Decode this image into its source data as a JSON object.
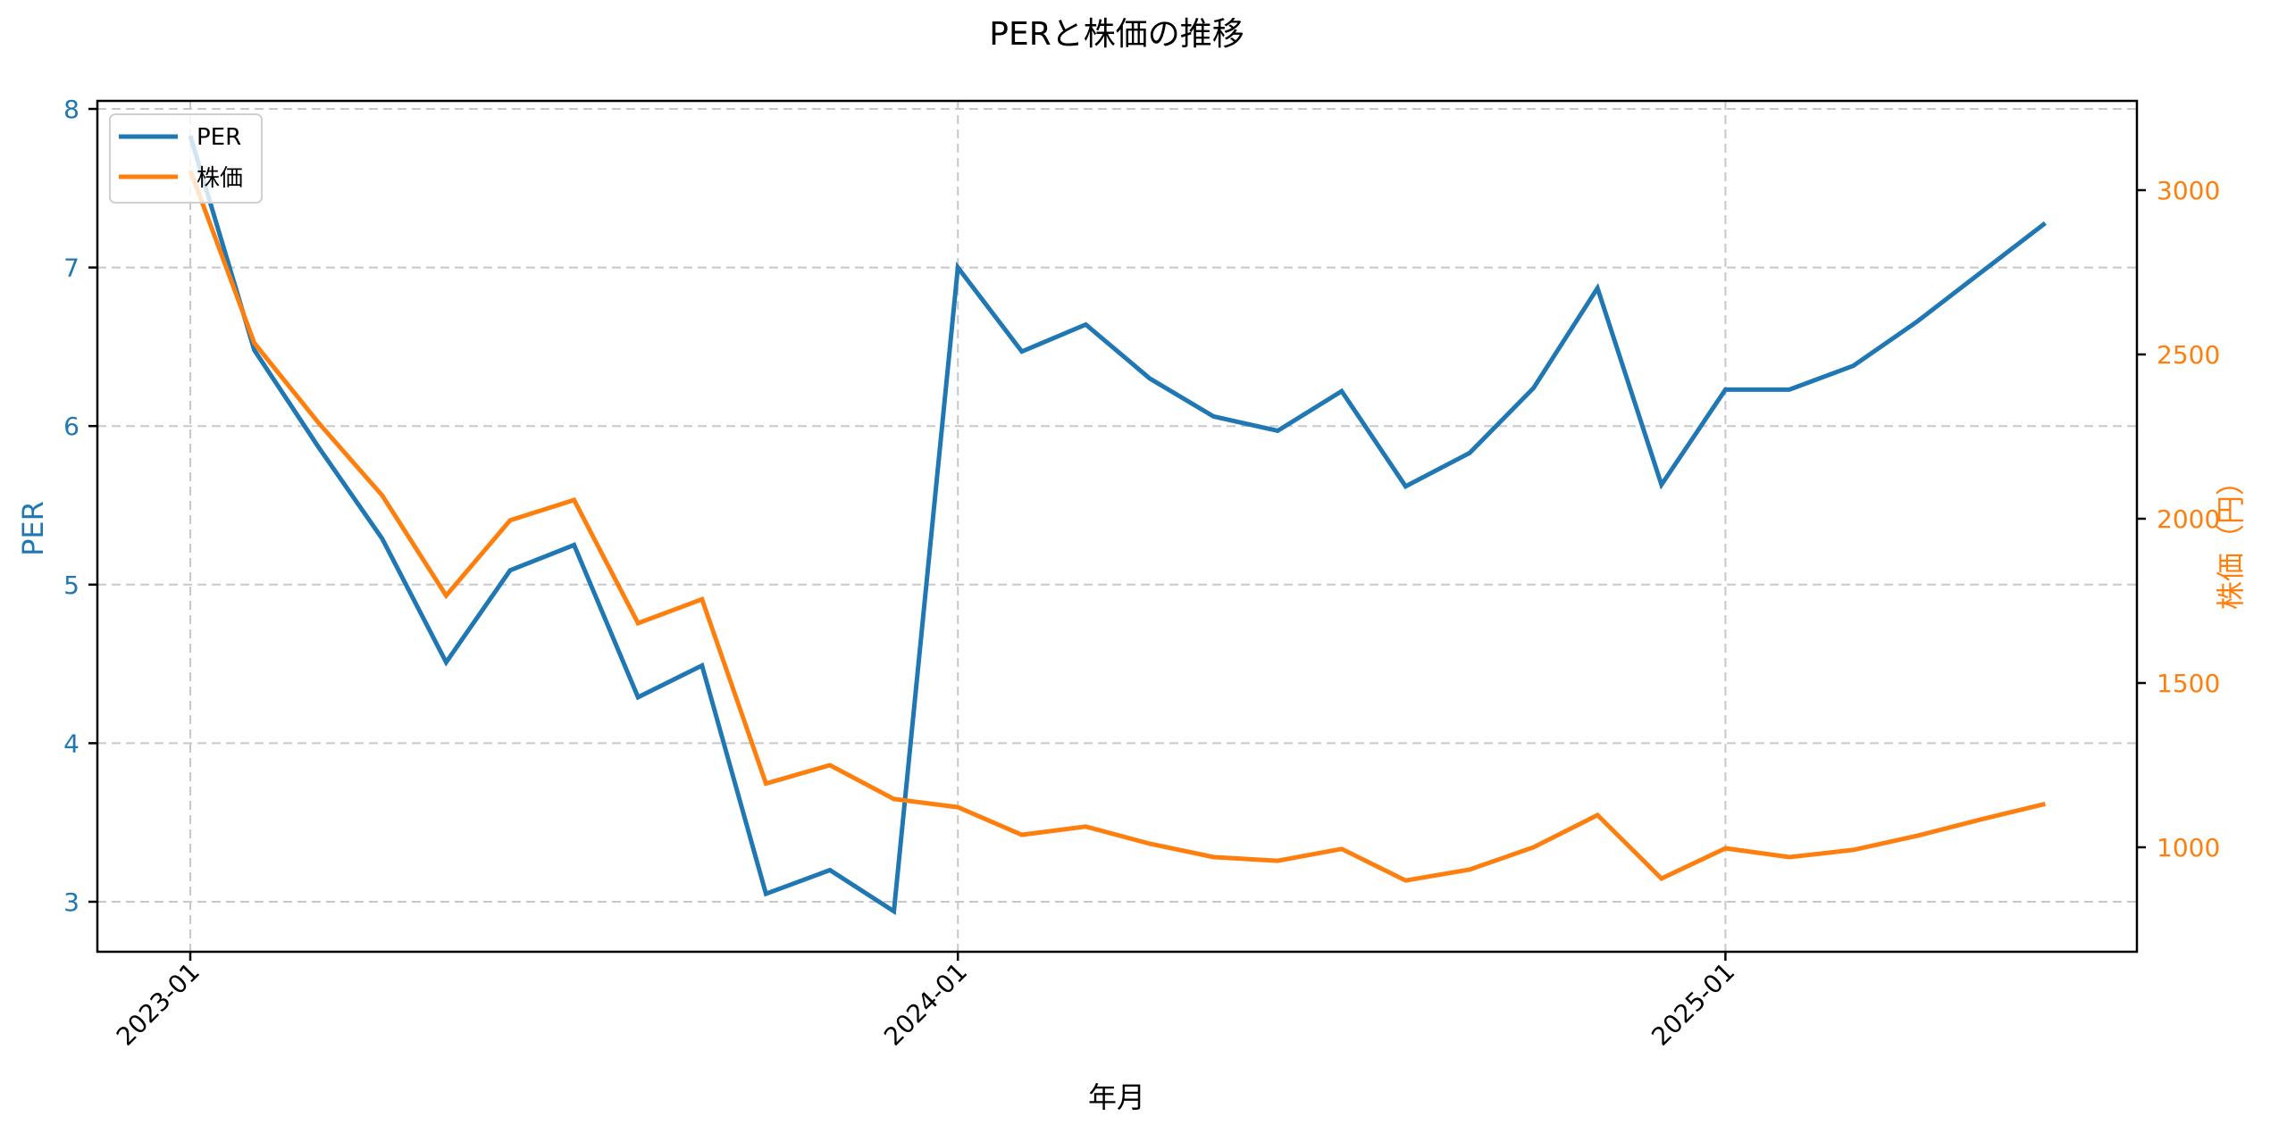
{
  "chart_data": {
    "type": "line",
    "title": "PERと株価の推移",
    "xlabel": "年月",
    "ylabel": "PER",
    "ylabel_right": "株価（円）",
    "x": [
      "2023-01",
      "2023-02",
      "2023-03",
      "2023-04",
      "2023-05",
      "2023-06",
      "2023-07",
      "2023-08",
      "2023-09",
      "2023-10",
      "2023-11",
      "2023-12",
      "2024-01",
      "2024-02",
      "2024-03",
      "2024-04",
      "2024-05",
      "2024-06",
      "2024-07",
      "2024-08",
      "2024-09",
      "2024-10",
      "2024-11",
      "2024-12",
      "2025-01",
      "2025-02",
      "2025-03",
      "2025-04",
      "2025-05",
      "2025-06"
    ],
    "x_ticks": [
      "2023-01",
      "2024-01",
      "2025-01"
    ],
    "series": [
      {
        "name": "PER",
        "axis": "left",
        "color": "#1f77b4",
        "values": [
          7.83,
          6.48,
          5.87,
          5.29,
          4.51,
          5.09,
          5.25,
          4.29,
          4.49,
          3.05,
          3.2,
          2.94,
          7.0,
          6.47,
          6.64,
          6.3,
          6.06,
          5.97,
          6.22,
          5.62,
          5.83,
          6.24,
          6.87,
          5.63,
          6.23,
          6.23,
          6.38,
          6.66,
          6.97,
          7.28
        ]
      },
      {
        "name": "株価",
        "axis": "right",
        "color": "#ff7f0e",
        "values": [
          3060,
          2535,
          2293,
          2071,
          1766,
          1995,
          2057,
          1682,
          1755,
          1194,
          1250,
          1147,
          1122,
          1038,
          1063,
          1011,
          970,
          959,
          995,
          899,
          932,
          1000,
          1098,
          905,
          997,
          970,
          992,
          1035,
          1085,
          1132
        ]
      }
    ],
    "ylim_left": [
      2.7,
      8.05
    ],
    "yticks_left": [
      3,
      4,
      5,
      6,
      7,
      8
    ],
    "ylim_right": [
      690,
      3260
    ],
    "yticks_right": [
      1000,
      1500,
      2000,
      2500,
      3000
    ],
    "grid": true,
    "legend_position": "upper left"
  },
  "legend": {
    "items": [
      {
        "label": "PER",
        "color": "#1f77b4"
      },
      {
        "label": "株価",
        "color": "#ff7f0e"
      }
    ]
  }
}
